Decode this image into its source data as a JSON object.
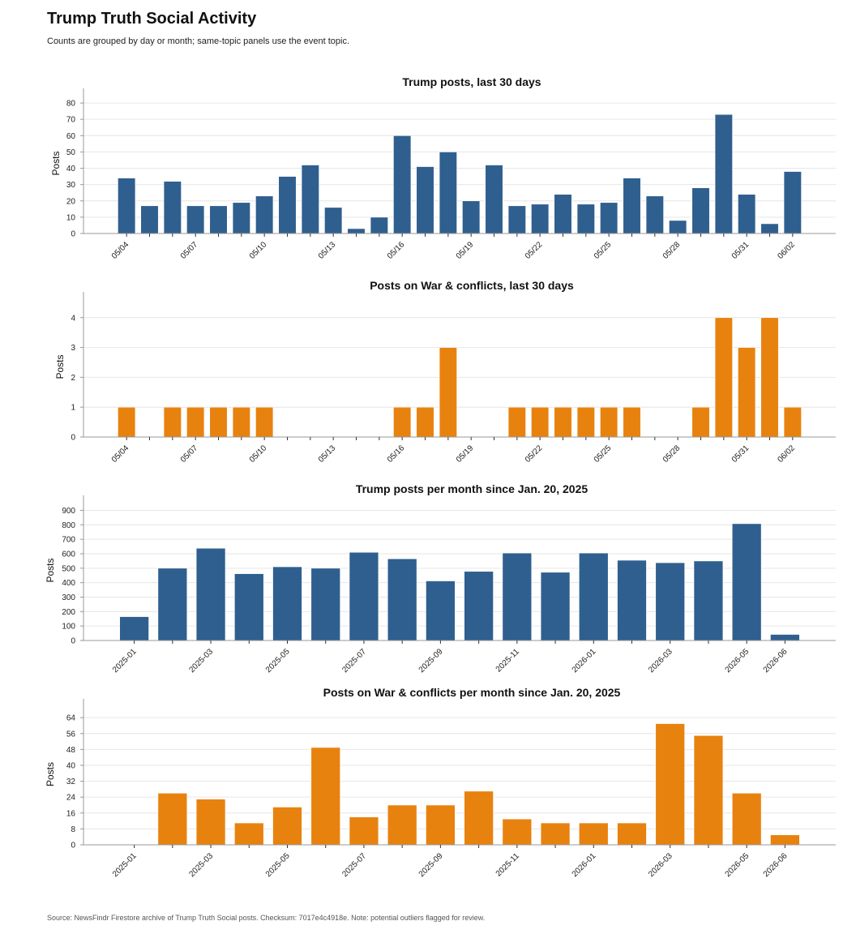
{
  "header": {
    "title": "Trump Truth Social Activity",
    "subtitle": "Counts are grouped by day or month; same-topic panels use the event topic."
  },
  "footer": {
    "source": "Source: NewsFindr Firestore archive of Trump Truth Social posts. Checksum: 7017e4c4918e. Note: potential outliers flagged for review."
  },
  "colors": {
    "blue": "#2f5f8f",
    "orange": "#e8820f",
    "grid": "#e6e6e6",
    "axis": "#999999"
  },
  "chart_data": [
    {
      "type": "bar",
      "title": "Trump posts, last 30 days",
      "ylabel": "Posts",
      "color": "#2f5f8f",
      "ylim": [
        0,
        86
      ],
      "yticks": [
        0,
        10,
        20,
        30,
        40,
        50,
        60,
        70,
        80
      ],
      "grid": true,
      "categories": [
        "05/04",
        "05/05",
        "05/06",
        "05/07",
        "05/08",
        "05/09",
        "05/10",
        "05/11",
        "05/12",
        "05/13",
        "05/14",
        "05/15",
        "05/16",
        "05/17",
        "05/18",
        "05/19",
        "05/20",
        "05/21",
        "05/22",
        "05/23",
        "05/24",
        "05/25",
        "05/26",
        "05/27",
        "05/28",
        "05/29",
        "05/30",
        "05/31",
        "06/01",
        "06/02"
      ],
      "labeled_categories": [
        "05/04",
        "05/07",
        "05/10",
        "05/13",
        "05/16",
        "05/19",
        "05/22",
        "05/25",
        "05/28",
        "05/31",
        "06/02"
      ],
      "values": [
        34,
        17,
        32,
        17,
        17,
        19,
        23,
        35,
        42,
        16,
        3,
        10,
        60,
        41,
        50,
        20,
        42,
        17,
        18,
        24,
        18,
        19,
        34,
        23,
        8,
        28,
        73,
        24,
        6,
        38
      ]
    },
    {
      "type": "bar",
      "title": "Posts on War & conflicts, last 30 days",
      "ylabel": "Posts",
      "color": "#e8820f",
      "ylim": [
        0,
        4.7
      ],
      "yticks": [
        0,
        1,
        2,
        3,
        4
      ],
      "grid": true,
      "categories": [
        "05/04",
        "05/05",
        "05/06",
        "05/07",
        "05/08",
        "05/09",
        "05/10",
        "05/11",
        "05/12",
        "05/13",
        "05/14",
        "05/15",
        "05/16",
        "05/17",
        "05/18",
        "05/19",
        "05/20",
        "05/21",
        "05/22",
        "05/23",
        "05/24",
        "05/25",
        "05/26",
        "05/27",
        "05/28",
        "05/29",
        "05/30",
        "05/31",
        "06/01",
        "06/02"
      ],
      "labeled_categories": [
        "05/04",
        "05/07",
        "05/10",
        "05/13",
        "05/16",
        "05/19",
        "05/22",
        "05/25",
        "05/28",
        "05/31",
        "06/02"
      ],
      "values": [
        1,
        0,
        1,
        1,
        1,
        1,
        1,
        0,
        0,
        0,
        0,
        0,
        1,
        1,
        3,
        0,
        0,
        1,
        1,
        1,
        1,
        1,
        1,
        0,
        0,
        1,
        4,
        3,
        4,
        1
      ]
    },
    {
      "type": "bar",
      "title": "Trump posts per month since Jan. 20, 2025",
      "ylabel": "Posts",
      "color": "#2f5f8f",
      "ylim": [
        0,
        970
      ],
      "yticks": [
        0,
        100,
        200,
        300,
        400,
        500,
        600,
        700,
        800,
        900
      ],
      "grid": true,
      "categories": [
        "2025-01",
        "2025-02",
        "2025-03",
        "2025-04",
        "2025-05",
        "2025-06",
        "2025-07",
        "2025-08",
        "2025-09",
        "2025-10",
        "2025-11",
        "2025-12",
        "2026-01",
        "2026-02",
        "2026-03",
        "2026-04",
        "2026-05",
        "2026-06"
      ],
      "labeled_categories": [
        "2025-01",
        "2025-03",
        "2025-05",
        "2025-07",
        "2025-09",
        "2025-11",
        "2026-01",
        "2026-03",
        "2026-05",
        "2026-06"
      ],
      "values": [
        165,
        500,
        638,
        462,
        510,
        500,
        610,
        565,
        412,
        478,
        605,
        472,
        605,
        555,
        538,
        550,
        808,
        42
      ]
    },
    {
      "type": "bar",
      "title": "Posts on War & conflicts per month since Jan. 20, 2025",
      "ylabel": "Posts",
      "color": "#e8820f",
      "ylim": [
        0,
        71
      ],
      "yticks": [
        0,
        8,
        16,
        24,
        32,
        40,
        48,
        56,
        64
      ],
      "grid": true,
      "categories": [
        "2025-01",
        "2025-02",
        "2025-03",
        "2025-04",
        "2025-05",
        "2025-06",
        "2025-07",
        "2025-08",
        "2025-09",
        "2025-10",
        "2025-11",
        "2025-12",
        "2026-01",
        "2026-02",
        "2026-03",
        "2026-04",
        "2026-05",
        "2026-06"
      ],
      "labeled_categories": [
        "2025-01",
        "2025-03",
        "2025-05",
        "2025-07",
        "2025-09",
        "2025-11",
        "2026-01",
        "2026-03",
        "2026-05",
        "2026-06"
      ],
      "values": [
        0,
        26,
        23,
        11,
        19,
        49,
        14,
        20,
        20,
        27,
        13,
        11,
        11,
        11,
        61,
        55,
        26,
        5
      ]
    }
  ]
}
